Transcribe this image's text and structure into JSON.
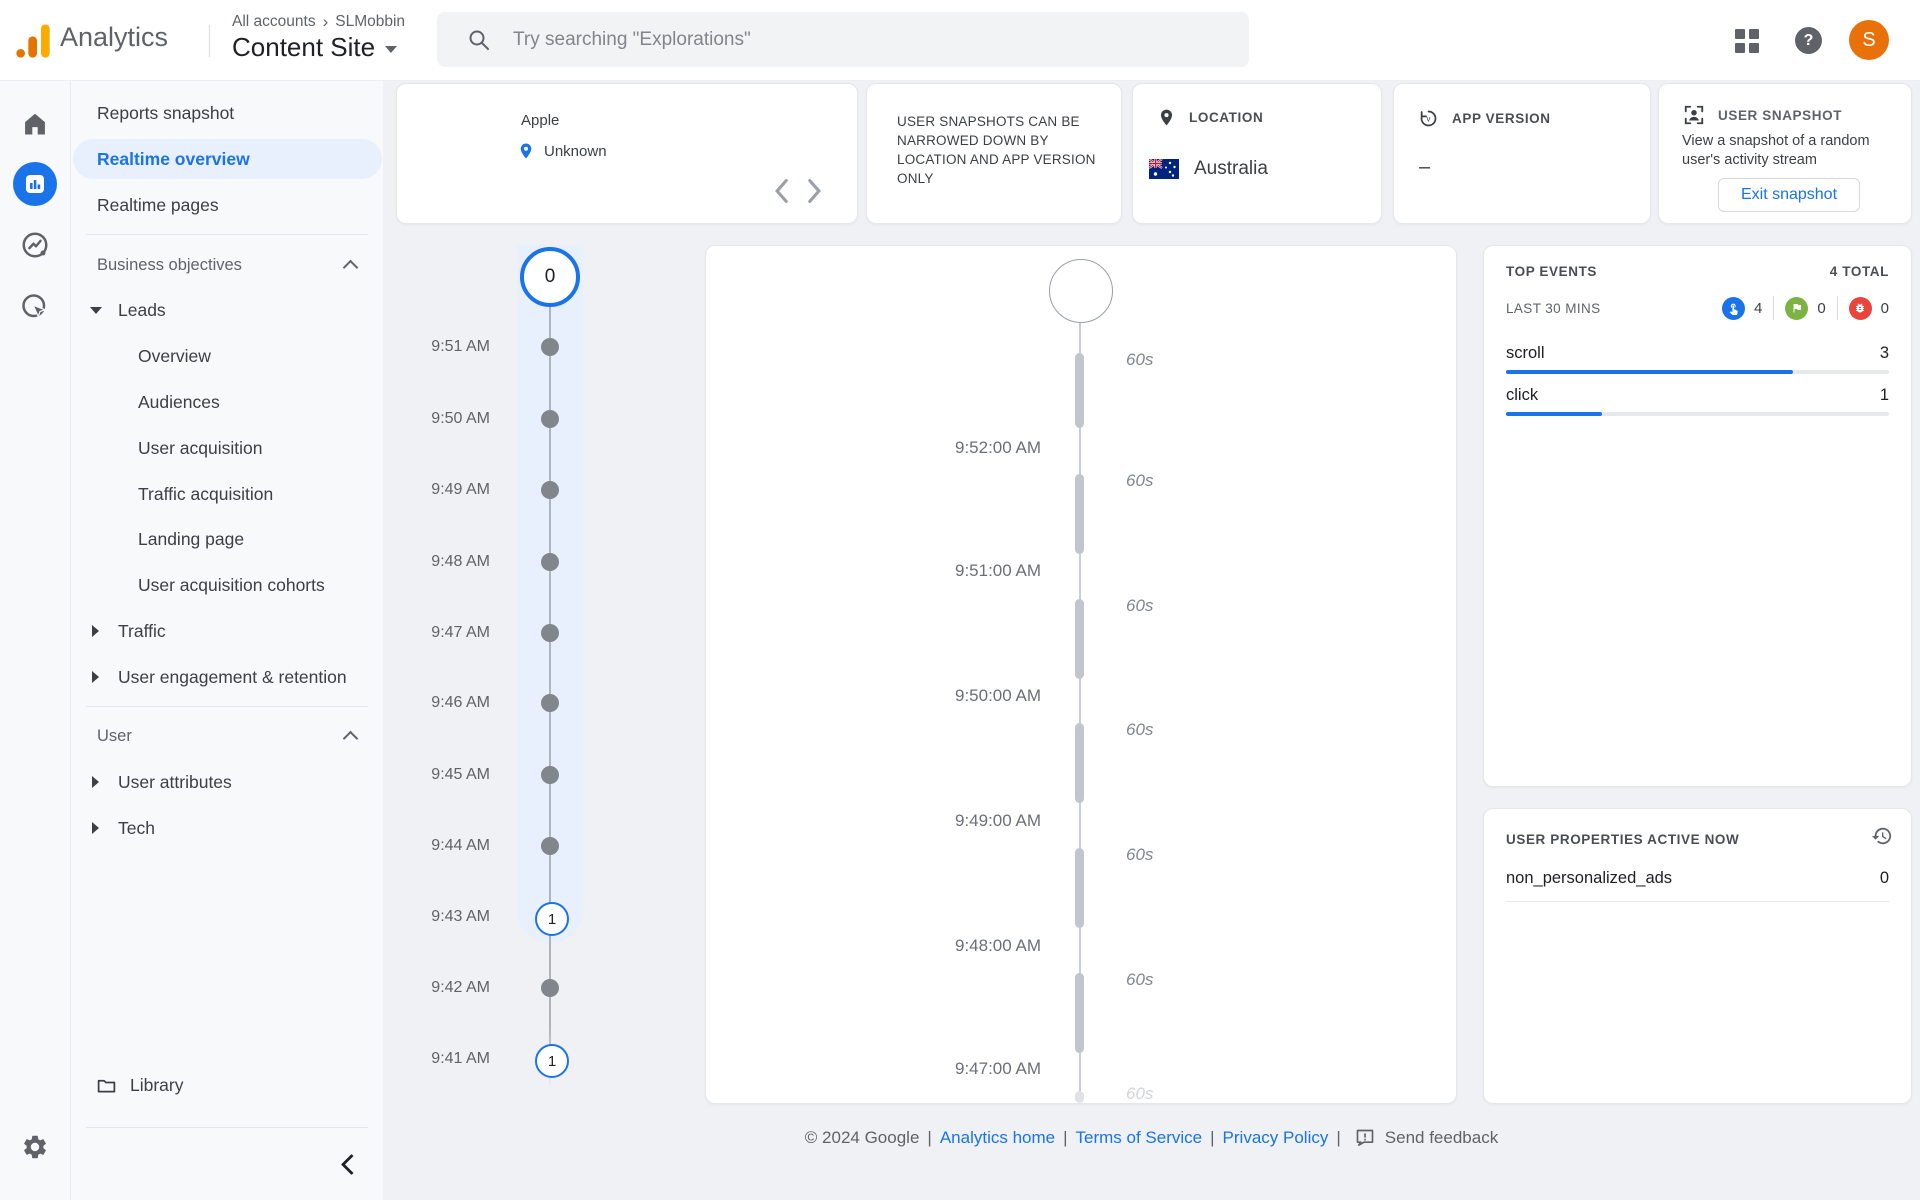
{
  "header": {
    "product_name": "Analytics",
    "breadcrumb": {
      "root": "All accounts",
      "separator": "›",
      "account": "SLMobbin"
    },
    "property_selector": "Content Site",
    "search_placeholder": "Try searching \"Explorations\"",
    "avatar_letter": "S",
    "help_glyph": "?"
  },
  "sidebar": {
    "items": [
      {
        "label": "Reports snapshot"
      },
      {
        "label": "Realtime overview",
        "active": true
      },
      {
        "label": "Realtime pages"
      }
    ],
    "sections": [
      {
        "title": "Business objectives",
        "groups": [
          {
            "label": "Leads",
            "expanded": true,
            "children": [
              "Overview",
              "Audiences",
              "User acquisition",
              "Traffic acquisition",
              "Landing page",
              "User acquisition cohorts"
            ]
          },
          {
            "label": "Traffic",
            "expanded": false
          },
          {
            "label": "User engagement & retention",
            "expanded": false
          }
        ]
      },
      {
        "title": "User",
        "groups": [
          {
            "label": "User attributes",
            "expanded": false
          },
          {
            "label": "Tech",
            "expanded": false
          }
        ]
      }
    ],
    "library_label": "Library"
  },
  "filters": {
    "device_card": {
      "title": "Apple",
      "location": "Unknown"
    },
    "notice_card": {
      "text": "USER SNAPSHOTS CAN BE NARROWED DOWN BY LOCATION AND APP VERSION ONLY"
    },
    "location_card": {
      "label": "LOCATION",
      "value": "Australia"
    },
    "app_version_card": {
      "label": "APP VERSION",
      "value": "–"
    },
    "snapshot_card": {
      "label": "USER SNAPSHOT",
      "description": "View a snapshot of a random user's activity stream",
      "button_label": "Exit snapshot"
    }
  },
  "minute_timeline": {
    "current_count": "0",
    "rows": [
      {
        "time": "9:51 AM"
      },
      {
        "time": "9:50 AM"
      },
      {
        "time": "9:49 AM"
      },
      {
        "time": "9:48 AM"
      },
      {
        "time": "9:47 AM"
      },
      {
        "time": "9:46 AM"
      },
      {
        "time": "9:45 AM"
      },
      {
        "time": "9:44 AM"
      },
      {
        "time": "9:43 AM",
        "count": "1"
      },
      {
        "time": "9:42 AM"
      },
      {
        "time": "9:41 AM",
        "count": "1"
      }
    ]
  },
  "stream": {
    "interval_label": "60s",
    "ticks": [
      "9:52:00 AM",
      "9:51:00 AM",
      "9:50:00 AM",
      "9:49:00 AM",
      "9:48:00 AM",
      "9:47:00 AM"
    ]
  },
  "top_events": {
    "title": "TOP EVENTS",
    "total_label": "4 TOTAL",
    "window_label": "LAST 30 MINS",
    "counters": [
      {
        "icon": "touch-icon",
        "value": "4",
        "color": "#1a73e8"
      },
      {
        "icon": "flag-icon",
        "value": "0",
        "color": "#7cb342"
      },
      {
        "icon": "bug-icon",
        "value": "0",
        "color": "#e8453c"
      }
    ],
    "events": [
      {
        "name": "scroll",
        "value": "3",
        "bar_pct": 75
      },
      {
        "name": "click",
        "value": "1",
        "bar_pct": 25
      }
    ]
  },
  "user_properties": {
    "title": "USER PROPERTIES ACTIVE NOW",
    "rows": [
      {
        "name": "non_personalized_ads",
        "value": "0"
      }
    ]
  },
  "footer": {
    "copyright": "© 2024 Google",
    "separator": "|",
    "links": [
      "Analytics home",
      "Terms of Service",
      "Privacy Policy"
    ],
    "feedback_label": "Send feedback"
  },
  "colors": {
    "accent_blue": "#1a73e8",
    "band_blue": "#e8f0fe",
    "avatar_orange": "#e8710a",
    "counter_green": "#7cb342",
    "counter_red": "#e8453c"
  }
}
